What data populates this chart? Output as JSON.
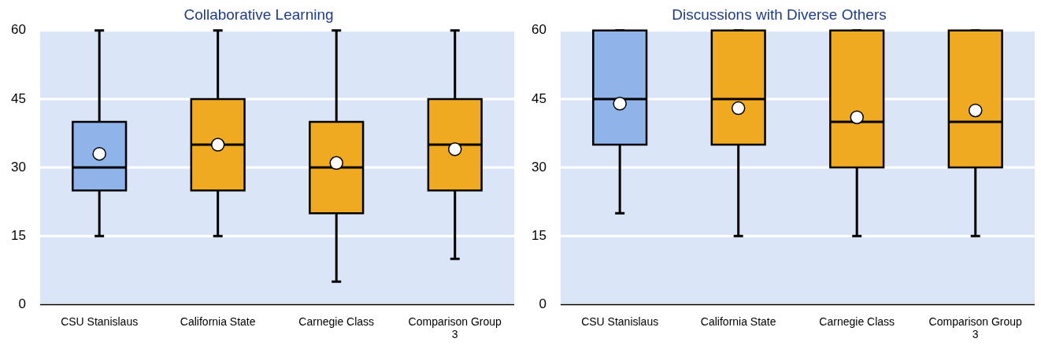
{
  "chart_data": [
    {
      "type": "box",
      "title": "Collaborative Learning",
      "categories": [
        "CSU Stanislaus",
        "California State",
        "Carnegie Class",
        "Comparison Group 3"
      ],
      "colors": [
        "#8eb4ea",
        "#f0aa22",
        "#f0aa22",
        "#f0aa22"
      ],
      "boxes": [
        {
          "low": 15,
          "q1": 25,
          "median": 30,
          "q3": 40,
          "high": 60,
          "mean": 33
        },
        {
          "low": 15,
          "q1": 25,
          "median": 35,
          "q3": 45,
          "high": 60,
          "mean": 35
        },
        {
          "low": 5,
          "q1": 20,
          "median": 30,
          "q3": 40,
          "high": 60,
          "mean": 31
        },
        {
          "low": 10,
          "q1": 25,
          "median": 35,
          "q3": 45,
          "high": 60,
          "mean": 34
        }
      ],
      "ylim": [
        0,
        60
      ],
      "yticks": [
        0,
        15,
        30,
        45,
        60
      ],
      "grid": "y",
      "legend": false
    },
    {
      "type": "box",
      "title": "Discussions with Diverse Others",
      "categories": [
        "CSU Stanislaus",
        "California State",
        "Carnegie Class",
        "Comparison Group 3"
      ],
      "colors": [
        "#8eb4ea",
        "#f0aa22",
        "#f0aa22",
        "#f0aa22"
      ],
      "boxes": [
        {
          "low": 20,
          "q1": 35,
          "median": 45,
          "q3": 60,
          "high": 60,
          "mean": 44
        },
        {
          "low": 15,
          "q1": 35,
          "median": 45,
          "q3": 60,
          "high": 60,
          "mean": 43
        },
        {
          "low": 15,
          "q1": 30,
          "median": 40,
          "q3": 60,
          "high": 60,
          "mean": 41
        },
        {
          "low": 15,
          "q1": 30,
          "median": 40,
          "q3": 60,
          "high": 60,
          "mean": 42.5
        }
      ],
      "ylim": [
        0,
        60
      ],
      "yticks": [
        0,
        15,
        30,
        45,
        60
      ],
      "grid": "y",
      "legend": false
    }
  ]
}
